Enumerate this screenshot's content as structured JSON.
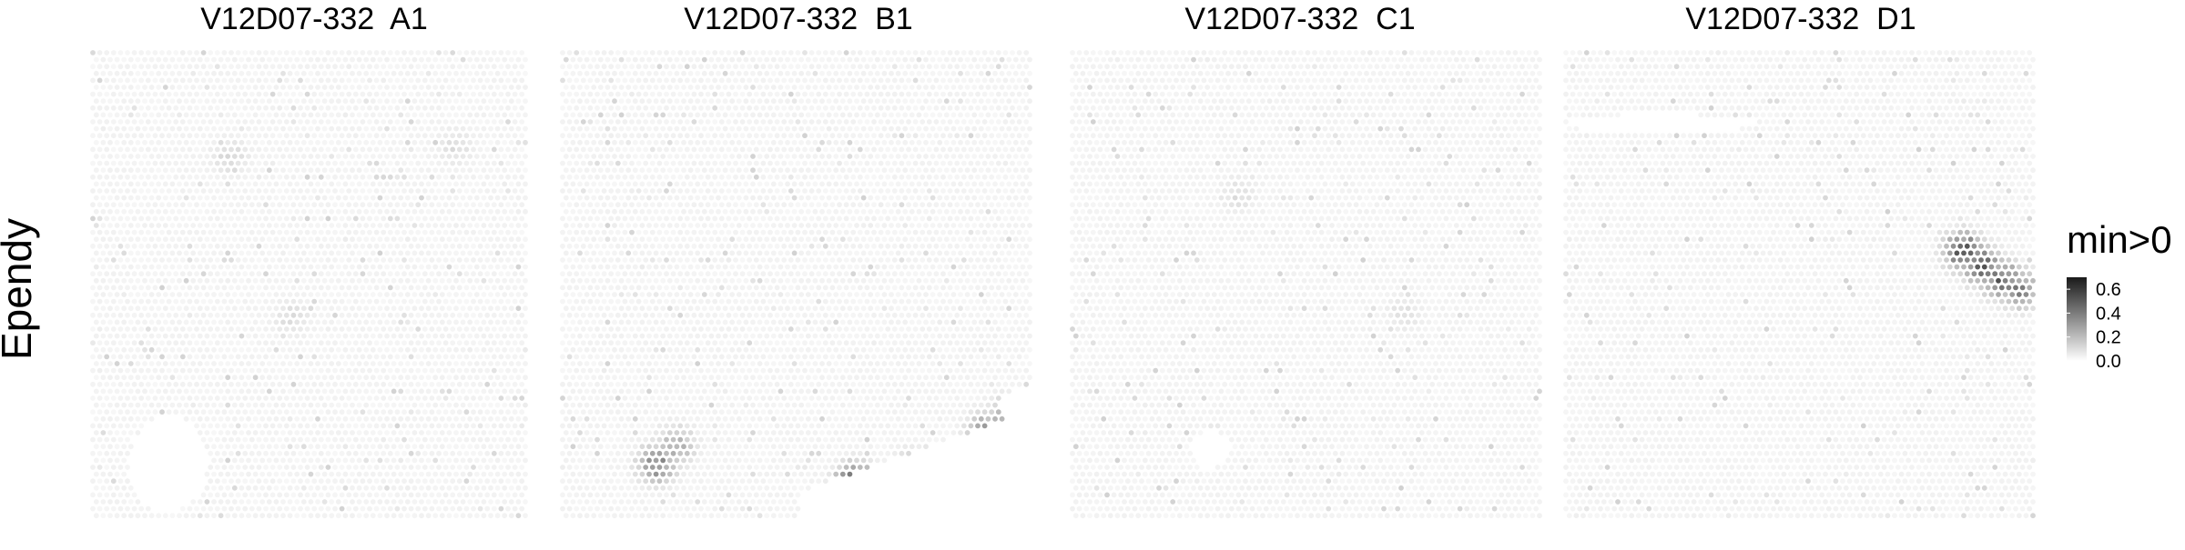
{
  "row_label": "Ependy",
  "chart_data": {
    "type": "heatmap",
    "description": "Spatial transcriptomics spot maps",
    "row_label": "Ependy",
    "panels": [
      {
        "title": "V12D07-332  A1",
        "hotspots": [
          {
            "x": 0.31,
            "y": 0.22,
            "value": 0.12
          },
          {
            "x": 0.82,
            "y": 0.2,
            "value": 0.1
          },
          {
            "x": 0.45,
            "y": 0.56,
            "value": 0.11
          }
        ],
        "empty_regions": [
          {
            "x": 0.17,
            "y": 0.87,
            "rx": 0.09,
            "ry": 0.1
          }
        ]
      },
      {
        "title": "V12D07-332  B1",
        "hotspots": [
          {
            "x": 0.2,
            "y": 0.87,
            "value": 0.45
          },
          {
            "x": 0.24,
            "y": 0.83,
            "value": 0.3
          },
          {
            "x": 0.62,
            "y": 0.91,
            "value": 0.65
          },
          {
            "x": 0.74,
            "y": 0.88,
            "value": 0.25
          },
          {
            "x": 0.9,
            "y": 0.8,
            "value": 0.4
          },
          {
            "x": 0.94,
            "y": 0.77,
            "value": 0.3
          }
        ],
        "empty_regions": [
          {
            "x": 0.97,
            "y": 0.75,
            "rx": 0.04,
            "ry": 0.04
          }
        ]
      },
      {
        "title": "V12D07-332  C1",
        "hotspots": [
          {
            "x": 0.35,
            "y": 0.3,
            "value": 0.1
          },
          {
            "x": 0.7,
            "y": 0.55,
            "value": 0.09
          }
        ],
        "empty_regions": [
          {
            "x": 0.29,
            "y": 0.84,
            "rx": 0.04,
            "ry": 0.04
          }
        ]
      },
      {
        "title": "V12D07-332  D1",
        "hotspots": [
          {
            "x": 0.84,
            "y": 0.42,
            "value": 0.62
          },
          {
            "x": 0.88,
            "y": 0.45,
            "value": 0.6
          },
          {
            "x": 0.92,
            "y": 0.48,
            "value": 0.55
          },
          {
            "x": 0.96,
            "y": 0.5,
            "value": 0.45
          }
        ],
        "empty_regions": [
          {
            "x": 0.2,
            "y": 0.15,
            "rx": 0.2,
            "ry": 0.02
          }
        ]
      }
    ],
    "colorbar": {
      "title": "min>0",
      "ticks": [
        0.6,
        0.4,
        0.2,
        0.0
      ],
      "tick_labels": [
        "0.6",
        "0.4",
        "0.2",
        "0.0"
      ],
      "range": [
        0.0,
        0.7
      ],
      "low_color": "#ffffff",
      "high_color": "#1a1a1a"
    }
  }
}
